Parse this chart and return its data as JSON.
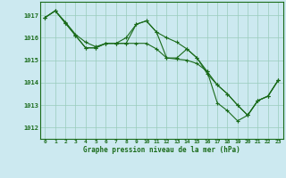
{
  "bg_color": "#cce9f0",
  "grid_color": "#99ccbb",
  "line_color": "#1a6b1a",
  "marker_color": "#1a6b1a",
  "title": "Graphe pression niveau de la mer (hPa)",
  "ylim": [
    1011.5,
    1017.6
  ],
  "yticks": [
    1012,
    1013,
    1014,
    1015,
    1016,
    1017
  ],
  "xlim": [
    -0.5,
    23.5
  ],
  "series1": [
    [
      0,
      1016.9
    ],
    [
      1,
      1017.2
    ],
    [
      2,
      1016.7
    ],
    [
      3,
      1016.15
    ],
    [
      4,
      1015.8
    ],
    [
      5,
      1015.6
    ],
    [
      6,
      1015.75
    ],
    [
      7,
      1015.75
    ],
    [
      8,
      1015.75
    ],
    [
      9,
      1016.6
    ],
    [
      10,
      1016.75
    ],
    [
      11,
      1016.25
    ],
    [
      12,
      1015.1
    ],
    [
      13,
      1015.1
    ],
    [
      14,
      1015.5
    ],
    [
      15,
      1015.1
    ],
    [
      16,
      1014.5
    ],
    [
      17,
      1013.1
    ],
    [
      18,
      1012.75
    ],
    [
      19,
      1012.3
    ],
    [
      20,
      1012.55
    ],
    [
      21,
      1013.2
    ],
    [
      22,
      1013.4
    ],
    [
      23,
      1014.1
    ]
  ],
  "series2": [
    [
      0,
      1016.9
    ],
    [
      1,
      1017.2
    ],
    [
      2,
      1016.65
    ],
    [
      3,
      1016.1
    ],
    [
      4,
      1015.55
    ],
    [
      5,
      1015.55
    ],
    [
      6,
      1015.75
    ],
    [
      7,
      1015.75
    ],
    [
      8,
      1015.75
    ],
    [
      9,
      1015.75
    ],
    [
      10,
      1015.75
    ],
    [
      11,
      1015.5
    ],
    [
      12,
      1015.1
    ],
    [
      13,
      1015.05
    ],
    [
      14,
      1015.0
    ],
    [
      15,
      1014.85
    ],
    [
      16,
      1014.5
    ],
    [
      17,
      1013.9
    ],
    [
      18,
      1013.5
    ],
    [
      19,
      1013.0
    ],
    [
      20,
      1012.55
    ],
    [
      21,
      1013.2
    ],
    [
      22,
      1013.4
    ],
    [
      23,
      1014.1
    ]
  ],
  "series3": [
    [
      0,
      1016.9
    ],
    [
      1,
      1017.2
    ],
    [
      2,
      1016.65
    ],
    [
      3,
      1016.1
    ],
    [
      4,
      1015.55
    ],
    [
      5,
      1015.55
    ],
    [
      6,
      1015.75
    ],
    [
      7,
      1015.75
    ],
    [
      8,
      1016.0
    ],
    [
      9,
      1016.6
    ],
    [
      10,
      1016.75
    ],
    [
      11,
      1016.25
    ],
    [
      12,
      1016.0
    ],
    [
      13,
      1015.8
    ],
    [
      14,
      1015.5
    ],
    [
      15,
      1015.1
    ],
    [
      16,
      1014.4
    ],
    [
      17,
      1013.9
    ],
    [
      18,
      1013.5
    ],
    [
      19,
      1013.0
    ],
    [
      20,
      1012.55
    ],
    [
      21,
      1013.2
    ],
    [
      22,
      1013.4
    ],
    [
      23,
      1014.1
    ]
  ]
}
